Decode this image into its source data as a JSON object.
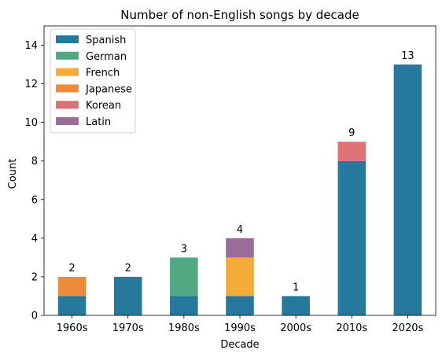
{
  "chart_data": {
    "type": "bar",
    "stacked": true,
    "title": "Number of non-English songs by decade",
    "xlabel": "Decade",
    "ylabel": "Count",
    "categories": [
      "1960s",
      "1970s",
      "1980s",
      "1990s",
      "2000s",
      "2010s",
      "2020s"
    ],
    "ylim": [
      0,
      15
    ],
    "yticks": [
      0,
      2,
      4,
      6,
      8,
      10,
      12,
      14
    ],
    "grid": false,
    "legend_position": "top-left",
    "series": [
      {
        "name": "Spanish",
        "color": "#25799d",
        "values": [
          1,
          2,
          1,
          1,
          1,
          8,
          13
        ]
      },
      {
        "name": "German",
        "color": "#52a883",
        "values": [
          0,
          0,
          2,
          0,
          0,
          0,
          0
        ]
      },
      {
        "name": "French",
        "color": "#f4ab38",
        "values": [
          0,
          0,
          0,
          2,
          0,
          0,
          0
        ]
      },
      {
        "name": "Japanese",
        "color": "#ee8b3a",
        "values": [
          1,
          0,
          0,
          0,
          0,
          0,
          0
        ]
      },
      {
        "name": "Korean",
        "color": "#de7274",
        "values": [
          0,
          0,
          0,
          0,
          0,
          1,
          0
        ]
      },
      {
        "name": "Latin",
        "color": "#9b6b99",
        "values": [
          0,
          0,
          0,
          1,
          0,
          0,
          0
        ]
      }
    ],
    "totals": [
      2,
      2,
      3,
      4,
      1,
      9,
      13
    ]
  }
}
